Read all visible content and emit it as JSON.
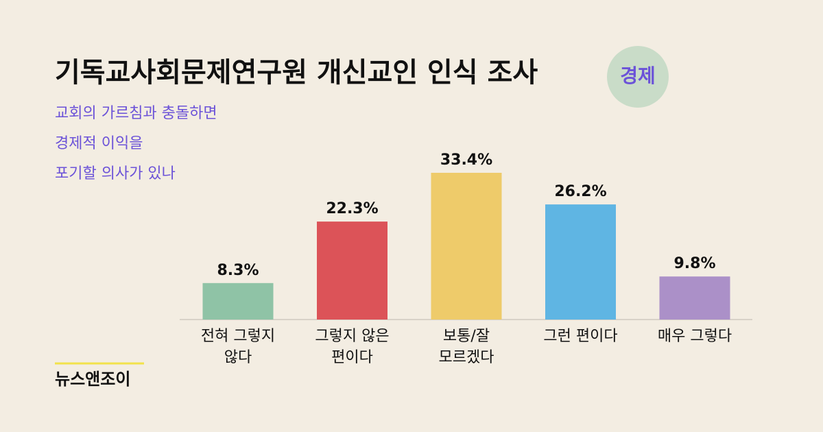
{
  "chart_data": {
    "type": "bar",
    "title": "기독교사회문제연구원 개신교인 인식 조사",
    "badge": "경제",
    "subtitle": [
      "교회의 가르침과 충돌하면",
      "경제적 이익을",
      "포기할 의사가 있나"
    ],
    "categories": [
      [
        "전혀 그렇지",
        "않다"
      ],
      [
        "그렇지 않은",
        "편이다"
      ],
      [
        "보통/잘",
        "모르겠다"
      ],
      [
        "그런 편이다"
      ],
      [
        "매우 그렇다"
      ]
    ],
    "values": [
      8.3,
      22.3,
      33.4,
      26.2,
      9.8
    ],
    "value_labels": [
      "8.3%",
      "22.3%",
      "33.4%",
      "26.2%",
      "9.8%"
    ],
    "colors": [
      "#8fc3a6",
      "#dc5358",
      "#eecb6a",
      "#5fb5e3",
      "#ab90c8"
    ],
    "source": "뉴스앤조이"
  }
}
